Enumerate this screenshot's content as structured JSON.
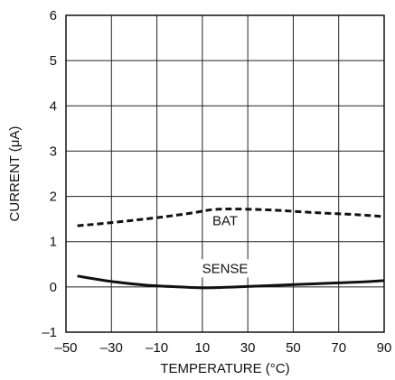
{
  "chart_data": {
    "type": "line",
    "title": "",
    "xlabel": "TEMPERATURE (°C)",
    "ylabel": "CURRENT (μA)",
    "xlim": [
      -50,
      90
    ],
    "ylim": [
      -1,
      6
    ],
    "x_ticks": [
      "–50",
      "–30",
      "–10",
      "10",
      "30",
      "50",
      "70",
      "90"
    ],
    "y_ticks": [
      "–1",
      "0",
      "1",
      "2",
      "3",
      "4",
      "5",
      "6"
    ],
    "grid": true,
    "series": [
      {
        "name": "BAT",
        "style": "dashed",
        "color": "#111111",
        "x": [
          -45,
          -30,
          -10,
          5,
          15,
          25,
          40,
          60,
          80,
          90
        ],
        "y": [
          1.35,
          1.42,
          1.53,
          1.63,
          1.71,
          1.72,
          1.7,
          1.64,
          1.59,
          1.55
        ]
      },
      {
        "name": "SENSE",
        "style": "solid",
        "color": "#111111",
        "x": [
          -45,
          -30,
          -15,
          0,
          10,
          25,
          40,
          60,
          80,
          90
        ],
        "y": [
          0.24,
          0.12,
          0.04,
          0.0,
          -0.02,
          0.0,
          0.03,
          0.07,
          0.11,
          0.14
        ]
      }
    ]
  }
}
